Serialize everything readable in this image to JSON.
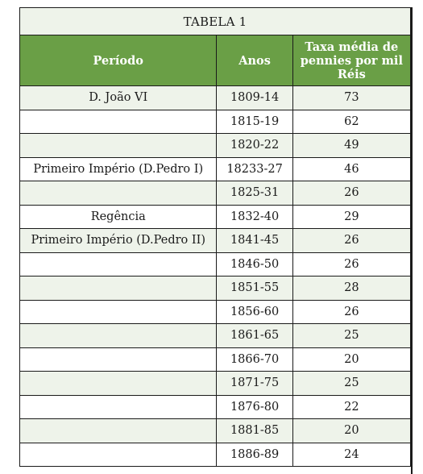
{
  "table": {
    "title": "TABELA 1",
    "headers": {
      "period": "Período",
      "years": "Anos",
      "rate": "Taxa média de pennies por mil Réis"
    },
    "rows": [
      {
        "period": "D. João VI",
        "years": "1809-14",
        "rate": "73"
      },
      {
        "period": "",
        "years": "1815-19",
        "rate": "62"
      },
      {
        "period": "",
        "years": "1820-22",
        "rate": "49"
      },
      {
        "period": "Primeiro Império (D.Pedro I)",
        "years": "18233-27",
        "rate": "46"
      },
      {
        "period": "",
        "years": "1825-31",
        "rate": "26"
      },
      {
        "period": "Regência",
        "years": "1832-40",
        "rate": "29"
      },
      {
        "period": "Primeiro Império (D.Pedro II)",
        "years": "1841-45",
        "rate": "26"
      },
      {
        "period": "",
        "years": "1846-50",
        "rate": "26"
      },
      {
        "period": "",
        "years": "1851-55",
        "rate": "28"
      },
      {
        "period": "",
        "years": "1856-60",
        "rate": "26"
      },
      {
        "period": "",
        "years": "1861-65",
        "rate": "25"
      },
      {
        "period": "",
        "years": "1866-70",
        "rate": "20"
      },
      {
        "period": "",
        "years": "1871-75",
        "rate": "25"
      },
      {
        "period": "",
        "years": "1876-80",
        "rate": "22"
      },
      {
        "period": "",
        "years": "1881-85",
        "rate": "20"
      },
      {
        "period": "",
        "years": "1886-89",
        "rate": "24"
      }
    ]
  },
  "colors": {
    "header_green": "#6a9f46",
    "shade_row": "#eef3ea",
    "plain_row": "#ffffff",
    "border": "#1a1a1a"
  }
}
